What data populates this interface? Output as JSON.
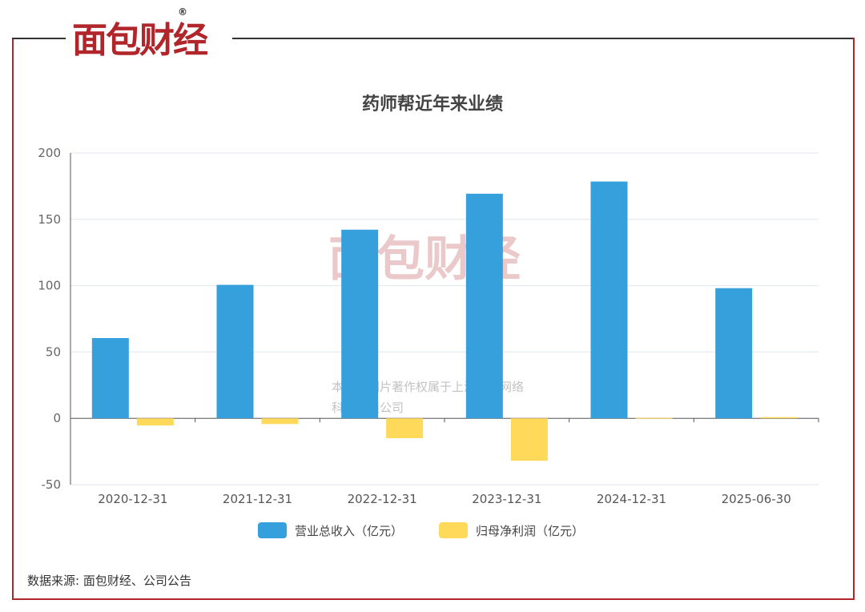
{
  "brand": "面包财经",
  "source": "数据来源: 面包财经、公司公告",
  "watermark": "本图表图片著作权属于上海妙探网络科技有限公司",
  "chart_data": {
    "type": "bar",
    "title": "药师帮近年来业绩",
    "categories": [
      "2020-12-31",
      "2021-12-31",
      "2022-12-31",
      "2023-12-31",
      "2024-12-31",
      "2025-06-30"
    ],
    "series": [
      {
        "name": "营业总收入（亿元）",
        "color": "#36a0dc",
        "values": [
          60.5,
          100.6,
          142.2,
          169.3,
          178.5,
          98.1
        ]
      },
      {
        "name": "归母净利润（亿元）",
        "color": "#ffd95a",
        "values": [
          -5.4,
          -4.3,
          -15.0,
          -32.0,
          0.3,
          0.9
        ]
      }
    ],
    "ylim": [
      -50,
      200
    ],
    "yticks": [
      -50,
      0,
      50,
      100,
      150,
      200
    ],
    "grid": true,
    "legend": "bottom"
  }
}
